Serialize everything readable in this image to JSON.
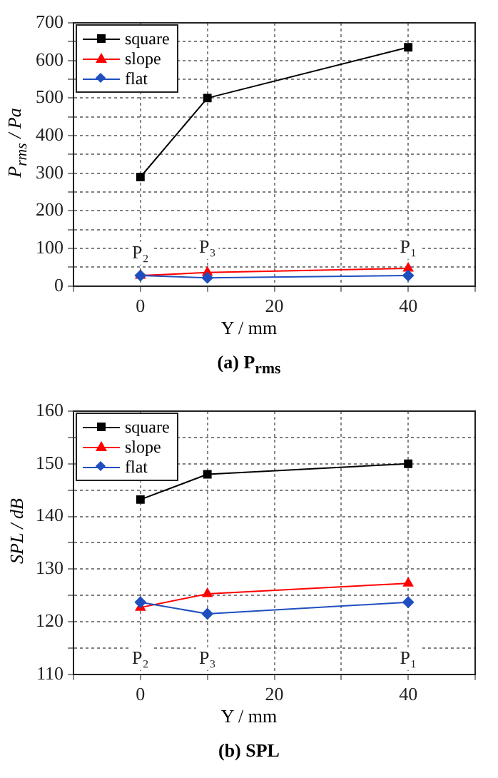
{
  "chart_data": [
    {
      "type": "line",
      "title": "(a) P$_{rms}$",
      "xlabel": "Y / mm",
      "ylabel": "P$_{rms}$ / Pa",
      "x": [
        0,
        10,
        40
      ],
      "series": [
        {
          "name": "square",
          "color": "#000000",
          "marker": "square",
          "values": [
            290,
            500,
            635
          ]
        },
        {
          "name": "slope",
          "color": "#ff0000",
          "marker": "triangle",
          "values": [
            28,
            36,
            47
          ]
        },
        {
          "name": "flat",
          "color": "#1f4fbf",
          "marker": "diamond",
          "values": [
            28,
            22,
            28
          ]
        }
      ],
      "xlim": [
        -10,
        50
      ],
      "xticks": [
        {
          "value": -10,
          "label": null
        },
        0,
        {
          "value": 10,
          "label": null
        },
        20,
        {
          "value": 30,
          "label": null
        },
        40,
        {
          "value": 50,
          "label": null
        }
      ],
      "ylim": [
        0,
        700
      ],
      "yticks": [
        0,
        {
          "value": 50,
          "label": null
        },
        100,
        {
          "value": 150,
          "label": null
        },
        200,
        {
          "value": 250,
          "label": null
        },
        300,
        {
          "value": 350,
          "label": null
        },
        400,
        {
          "value": 450,
          "label": null
        },
        500,
        {
          "value": 550,
          "label": null
        },
        600,
        {
          "value": 650,
          "label": null
        },
        700
      ],
      "annotations": [
        "P₂",
        "P₃",
        "P₁"
      ],
      "grid": true,
      "legend": "top left",
      "line_style": "solid"
    },
    {
      "type": "line",
      "title": "(b) SPL",
      "xlabel": "Y / mm",
      "ylabel": "SPL / dB",
      "x": [
        0,
        10,
        40
      ],
      "series": [
        {
          "name": "square",
          "color": "#000000",
          "marker": "square",
          "values": [
            143.2,
            148,
            150
          ]
        },
        {
          "name": "slope",
          "color": "#ff0000",
          "marker": "triangle",
          "values": [
            122.7,
            125.3,
            127.3
          ]
        },
        {
          "name": "flat",
          "color": "#1f4fbf",
          "marker": "diamond",
          "values": [
            123.7,
            121.5,
            123.7
          ]
        }
      ],
      "xlim": [
        -10,
        50
      ],
      "xticks": [
        {
          "value": -10,
          "label": null
        },
        0,
        {
          "value": 10,
          "label": null
        },
        20,
        {
          "value": 30,
          "label": null
        },
        40,
        {
          "value": 50,
          "label": null
        }
      ],
      "ylim": [
        110,
        160
      ],
      "yticks": [
        110,
        {
          "value": 115,
          "label": null
        },
        120,
        {
          "value": 125,
          "label": null
        },
        130,
        {
          "value": 135,
          "label": null
        },
        140,
        {
          "value": 145,
          "label": null
        },
        150,
        {
          "value": 155,
          "label": null
        },
        160
      ],
      "annotations": [
        "P₂",
        "P₃",
        "P₁"
      ],
      "grid": true,
      "legend": "top left",
      "line_style": "solid"
    }
  ]
}
